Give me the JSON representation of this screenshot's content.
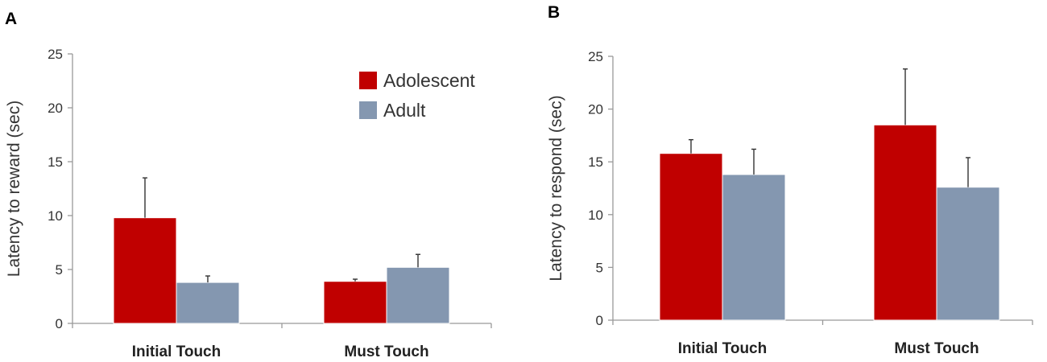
{
  "colors": {
    "adolescent": "#c00000",
    "adult": "#8497b0"
  },
  "legend": [
    {
      "label": "Adolescent",
      "color": "#c00000"
    },
    {
      "label": "Adult",
      "color": "#8497b0"
    }
  ],
  "chart_data": [
    {
      "type": "bar",
      "panel": "A",
      "title": "",
      "xlabel": "",
      "ylabel": "Latency to reward (sec)",
      "ylim": [
        0,
        25
      ],
      "yticks": [
        0,
        5,
        10,
        15,
        20,
        25
      ],
      "categories": [
        "Initial Touch",
        "Must Touch"
      ],
      "legend_position": "top-right",
      "series": [
        {
          "name": "Adolescent",
          "color": "#c00000",
          "values": [
            9.8,
            3.9
          ],
          "error": [
            3.7,
            0.2
          ]
        },
        {
          "name": "Adult",
          "color": "#8497b0",
          "values": [
            3.8,
            5.2
          ],
          "error": [
            0.6,
            1.2
          ]
        }
      ]
    },
    {
      "type": "bar",
      "panel": "B",
      "title": "",
      "xlabel": "",
      "ylabel": "Latency to respond (sec)",
      "ylim": [
        0,
        25
      ],
      "yticks": [
        0,
        5,
        10,
        15,
        20,
        25
      ],
      "categories": [
        "Initial Touch",
        "Must Touch"
      ],
      "series": [
        {
          "name": "Adolescent",
          "color": "#c00000",
          "values": [
            15.8,
            18.5
          ],
          "error": [
            1.3,
            5.3
          ]
        },
        {
          "name": "Adult",
          "color": "#8497b0",
          "values": [
            13.8,
            12.6
          ],
          "error": [
            2.4,
            2.8
          ]
        }
      ]
    }
  ]
}
